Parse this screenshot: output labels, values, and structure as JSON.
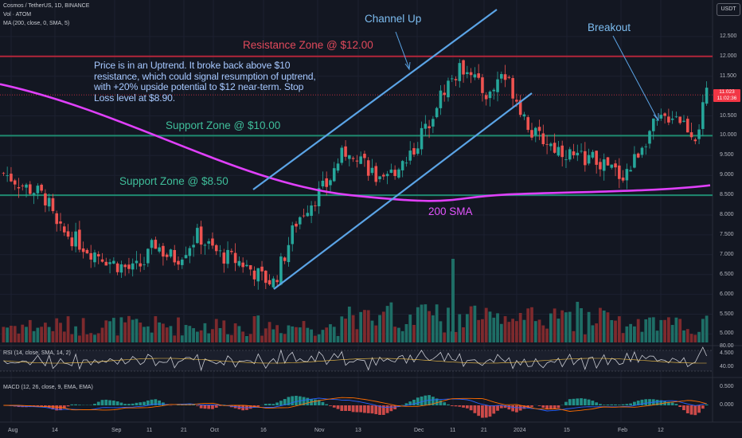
{
  "header": {
    "symbol_line": "Cosmos / TetherUS, 1D, BINANCE",
    "vol_line": "Vol · ATOM",
    "ma_line": "MA (200, close, 0, SMA, 5)",
    "currency_button": "USDT"
  },
  "annotations": {
    "note": "Price is in an Uptrend. It broke back above $10 resistance, which could signal resumption of uptrend, with +20% upside potential to $12 near-term. Stop Loss level at $8.90.",
    "resistance_label": "Resistance Zone @ $12.00",
    "support10_label": "Support Zone @ $10.00",
    "support85_label": "Support Zone @ $8.50",
    "channel_label": "Channel Up",
    "breakout_label": "Breakout",
    "sma_label": "200 SMA"
  },
  "price_tag": {
    "price": "11.023",
    "countdown": "11:02:36"
  },
  "price_axis": [
    "12.500",
    "12.000",
    "11.500",
    "10.500",
    "10.000",
    "9.500",
    "9.000",
    "8.500",
    "8.000",
    "7.500",
    "7.000",
    "6.500",
    "6.000",
    "5.500",
    "5.000",
    "4.500"
  ],
  "rsi": {
    "legend": "RSI (14, close, SMA, 14, 2)",
    "ticks": [
      "80.00",
      "40.00"
    ]
  },
  "macd": {
    "legend": "MACD (12, 26, close, 9, EMA, EMA)",
    "ticks": [
      "0.500",
      "0.000"
    ]
  },
  "time_axis": [
    "Aug",
    "14",
    "Sep",
    "11",
    "21",
    "Oct",
    "16",
    "Nov",
    "13",
    "Dec",
    "11",
    "21",
    "2024",
    "15",
    "Feb",
    "12"
  ],
  "colors": {
    "background": "#131722",
    "up": "#26a69a",
    "down": "#ef5350",
    "sma": "#e040fb",
    "channel": "#5ba4e6",
    "resistance": "#b2263a",
    "support": "#1f8a70",
    "note": "#a6c8ff"
  },
  "chart_data": {
    "type": "candlestick",
    "x_range": [
      "2023-07-30",
      "2024-02-25"
    ],
    "y_range": [
      4.3,
      12.9
    ],
    "levels": {
      "resistance": 12.0,
      "support_upper": 10.0,
      "support_lower": 8.5
    },
    "sma200": {
      "start": 11.3,
      "mid": 8.45,
      "end": 8.75
    },
    "channel": {
      "lower": [
        [
          6.1,
          "2023-10-18"
        ],
        [
          10.9,
          "2024-01-05"
        ]
      ],
      "upper": [
        [
          8.6,
          "2023-09-28"
        ],
        [
          13.2,
          "2024-01-01"
        ]
      ]
    },
    "price_path": [
      9.05,
      8.9,
      8.7,
      8.6,
      8.4,
      7.6,
      7.5,
      7.3,
      7.1,
      7.0,
      6.8,
      6.7,
      6.6,
      6.8,
      7.3,
      7.0,
      6.9,
      7.2,
      7.5,
      7.2,
      7.0,
      6.9,
      6.8,
      6.6,
      6.4,
      6.3,
      7.0,
      7.8,
      8.2,
      8.5,
      8.8,
      9.4,
      9.7,
      9.5,
      9.1,
      8.7,
      9.1,
      9.4,
      9.7,
      10.2,
      10.8,
      11.3,
      11.6,
      11.8,
      11.2,
      11.0,
      11.6,
      11.2,
      10.6,
      10.0,
      9.9,
      9.7,
      9.6,
      9.4,
      9.5,
      9.3,
      9.2,
      9.0,
      9.2,
      9.8,
      10.2,
      10.4,
      10.6,
      10.3,
      10.0,
      11.0
    ],
    "last_price": 11.023
  }
}
